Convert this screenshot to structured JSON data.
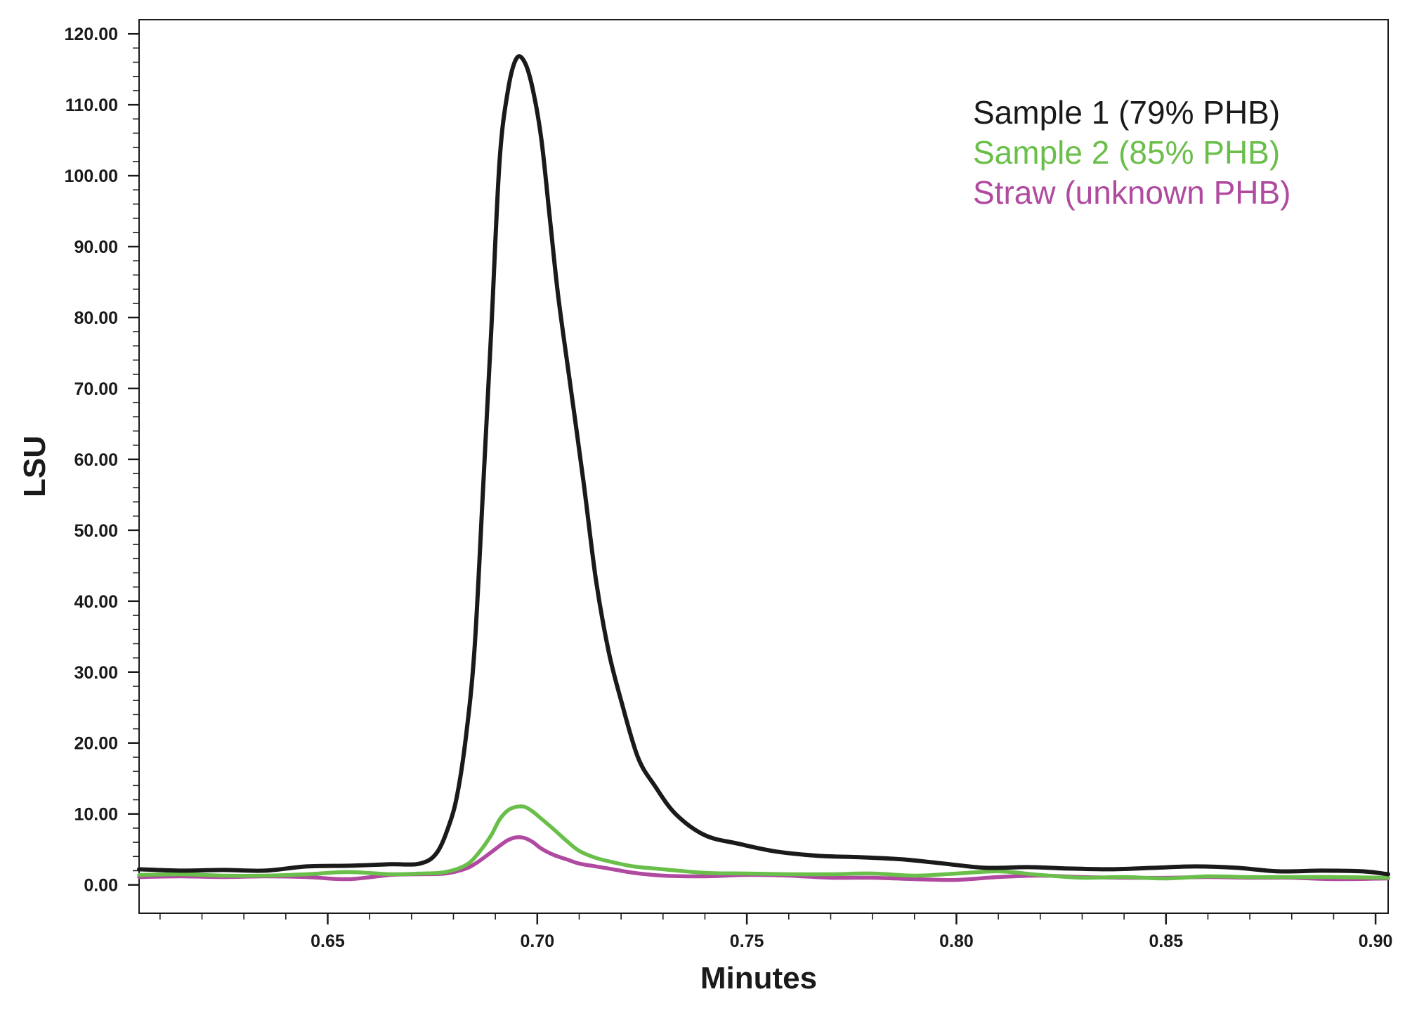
{
  "chart_data": {
    "type": "line",
    "title": "",
    "xlabel": "Minutes",
    "ylabel": "LSU",
    "xlim": [
      0.605,
      0.903
    ],
    "ylim": [
      -4,
      122
    ],
    "xticks": [
      0.65,
      0.7,
      0.75,
      0.8,
      0.85,
      0.9
    ],
    "xtick_labels": [
      "0.65",
      "0.70",
      "0.75",
      "0.80",
      "0.85",
      "0.90"
    ],
    "yticks": [
      0,
      10,
      20,
      30,
      40,
      50,
      60,
      70,
      80,
      90,
      100,
      110,
      120
    ],
    "ytick_labels": [
      "0.00",
      "10.00",
      "20.00",
      "30.00",
      "40.00",
      "50.00",
      "60.00",
      "70.00",
      "80.00",
      "90.00",
      "100.00",
      "110.00",
      "120.00"
    ],
    "grid": false,
    "legend_position": "top-right",
    "series": [
      {
        "name": "Sample 1 (79% PHB)",
        "color": "#1a1a1a",
        "x": [
          0.605,
          0.615,
          0.625,
          0.635,
          0.645,
          0.655,
          0.665,
          0.672,
          0.676,
          0.679,
          0.681,
          0.683,
          0.685,
          0.687,
          0.689,
          0.691,
          0.693,
          0.695,
          0.697,
          0.699,
          0.701,
          0.703,
          0.705,
          0.708,
          0.711,
          0.714,
          0.717,
          0.72,
          0.724,
          0.728,
          0.733,
          0.74,
          0.748,
          0.757,
          0.767,
          0.777,
          0.787,
          0.797,
          0.807,
          0.817,
          0.827,
          0.837,
          0.847,
          0.857,
          0.867,
          0.877,
          0.887,
          0.897,
          0.903
        ],
        "y": [
          2.2,
          2.0,
          2.1,
          2.0,
          2.6,
          2.7,
          2.9,
          3.0,
          4.5,
          8.5,
          13,
          21,
          33,
          55,
          78,
          102,
          112,
          116.5,
          116,
          112,
          105,
          94,
          83,
          70,
          57,
          43,
          33,
          26,
          18,
          14,
          10,
          7,
          5.8,
          4.7,
          4.1,
          3.9,
          3.6,
          3.0,
          2.4,
          2.5,
          2.3,
          2.2,
          2.4,
          2.6,
          2.4,
          1.9,
          2.0,
          1.9,
          1.5
        ]
      },
      {
        "name": "Sample 2 (85% PHB)",
        "color": "#6abf4b",
        "x": [
          0.605,
          0.615,
          0.625,
          0.635,
          0.645,
          0.655,
          0.665,
          0.672,
          0.678,
          0.683,
          0.686,
          0.689,
          0.691,
          0.693,
          0.695,
          0.697,
          0.699,
          0.701,
          0.704,
          0.707,
          0.71,
          0.714,
          0.718,
          0.723,
          0.73,
          0.74,
          0.75,
          0.76,
          0.77,
          0.78,
          0.79,
          0.8,
          0.81,
          0.82,
          0.83,
          0.84,
          0.85,
          0.86,
          0.87,
          0.88,
          0.89,
          0.903
        ],
        "y": [
          1.4,
          1.5,
          1.3,
          1.3,
          1.5,
          1.8,
          1.5,
          1.6,
          1.8,
          2.8,
          4.5,
          7.0,
          9.2,
          10.5,
          11.0,
          11.0,
          10.3,
          9.3,
          7.8,
          6.2,
          4.8,
          3.8,
          3.2,
          2.6,
          2.2,
          1.7,
          1.6,
          1.5,
          1.5,
          1.6,
          1.3,
          1.6,
          1.9,
          1.4,
          1.0,
          1.1,
          0.9,
          1.2,
          1.1,
          1.1,
          1.1,
          1.0
        ]
      },
      {
        "name": "Straw (unknown PHB)",
        "color": "#b04aa0",
        "x": [
          0.605,
          0.615,
          0.625,
          0.635,
          0.645,
          0.655,
          0.665,
          0.672,
          0.678,
          0.683,
          0.686,
          0.689,
          0.691,
          0.693,
          0.695,
          0.697,
          0.699,
          0.701,
          0.704,
          0.707,
          0.71,
          0.714,
          0.718,
          0.723,
          0.73,
          0.74,
          0.75,
          0.76,
          0.77,
          0.78,
          0.79,
          0.8,
          0.81,
          0.82,
          0.83,
          0.84,
          0.85,
          0.86,
          0.87,
          0.88,
          0.89,
          0.903
        ],
        "y": [
          1.1,
          1.2,
          1.1,
          1.2,
          1.1,
          0.8,
          1.4,
          1.5,
          1.6,
          2.3,
          3.3,
          4.6,
          5.5,
          6.3,
          6.7,
          6.6,
          6.0,
          5.1,
          4.2,
          3.6,
          3.0,
          2.6,
          2.2,
          1.7,
          1.3,
          1.2,
          1.4,
          1.3,
          1.0,
          1.0,
          0.8,
          0.7,
          1.1,
          1.3,
          1.1,
          1.0,
          1.0,
          1.1,
          1.0,
          1.0,
          0.8,
          0.9
        ]
      }
    ]
  }
}
